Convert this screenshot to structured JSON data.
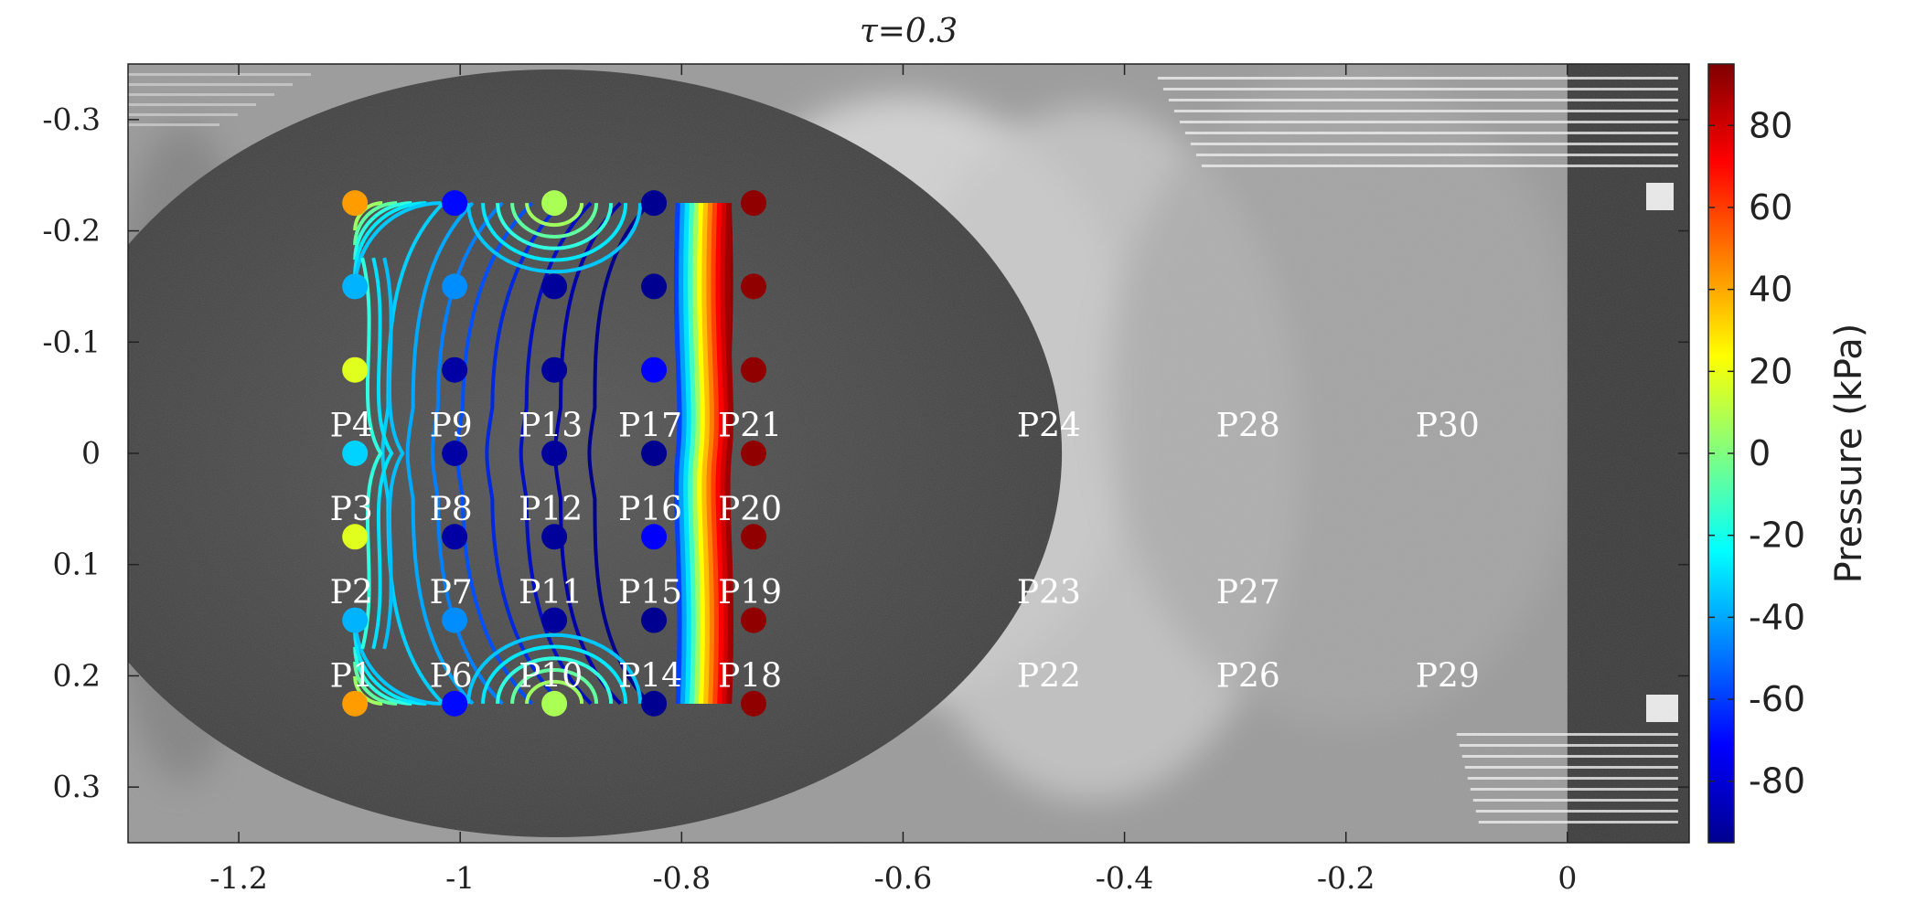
{
  "chart_data": {
    "type": "scatter",
    "title": "τ=0.3",
    "xlabel": "",
    "ylabel": "",
    "xlim": [
      -1.3,
      0.11
    ],
    "ylim": [
      0.35,
      -0.35
    ],
    "x_ticks": [
      -1.2,
      -1,
      -0.8,
      -0.6,
      -0.4,
      -0.2,
      0
    ],
    "x_tick_labels": [
      "-1.2",
      "-1",
      "-0.8",
      "-0.6",
      "-0.4",
      "-0.2",
      "0"
    ],
    "y_ticks": [
      -0.3,
      -0.2,
      -0.1,
      0,
      0.1,
      0.2,
      0.3
    ],
    "y_tick_labels": [
      "-0.3",
      "-0.2",
      "-0.1",
      "0",
      "0.1",
      "0.2",
      "0.3"
    ],
    "y_axis_reversed": true,
    "background": "grayscale high-speed camera image",
    "grid": false,
    "colorbar": {
      "label": "Pressure (kPa)",
      "range": [
        -95,
        95
      ],
      "ticks": [
        80,
        60,
        40,
        20,
        0,
        -20,
        -40,
        -60,
        -80
      ],
      "tick_labels": [
        "80",
        "60",
        "40",
        "20",
        "0",
        "-20",
        "-40",
        "-60",
        "-80"
      ],
      "colormap": "jet",
      "position": "right"
    },
    "sensor_points": [
      {
        "x": -1.095,
        "y": -0.225,
        "pressure": 42
      },
      {
        "x": -1.095,
        "y": -0.15,
        "pressure": -38
      },
      {
        "x": -1.095,
        "y": -0.075,
        "pressure": 18
      },
      {
        "x": -1.095,
        "y": 0.0,
        "pressure": -32
      },
      {
        "x": -1.095,
        "y": 0.075,
        "pressure": 18
      },
      {
        "x": -1.095,
        "y": 0.15,
        "pressure": -38
      },
      {
        "x": -1.095,
        "y": 0.225,
        "pressure": 42
      },
      {
        "x": -1.005,
        "y": -0.225,
        "pressure": -70
      },
      {
        "x": -1.005,
        "y": -0.15,
        "pressure": -45
      },
      {
        "x": -1.005,
        "y": -0.075,
        "pressure": -88
      },
      {
        "x": -1.005,
        "y": 0.0,
        "pressure": -88
      },
      {
        "x": -1.005,
        "y": 0.075,
        "pressure": -88
      },
      {
        "x": -1.005,
        "y": 0.15,
        "pressure": -45
      },
      {
        "x": -1.005,
        "y": 0.225,
        "pressure": -70
      },
      {
        "x": -0.915,
        "y": -0.225,
        "pressure": 8
      },
      {
        "x": -0.915,
        "y": -0.15,
        "pressure": -90
      },
      {
        "x": -0.915,
        "y": -0.075,
        "pressure": -90
      },
      {
        "x": -0.915,
        "y": 0.0,
        "pressure": -90
      },
      {
        "x": -0.915,
        "y": 0.075,
        "pressure": -90
      },
      {
        "x": -0.915,
        "y": 0.15,
        "pressure": -90
      },
      {
        "x": -0.915,
        "y": 0.225,
        "pressure": 8
      },
      {
        "x": -0.825,
        "y": -0.225,
        "pressure": -92
      },
      {
        "x": -0.825,
        "y": -0.15,
        "pressure": -92
      },
      {
        "x": -0.825,
        "y": -0.075,
        "pressure": -72
      },
      {
        "x": -0.825,
        "y": 0.0,
        "pressure": -92
      },
      {
        "x": -0.825,
        "y": 0.075,
        "pressure": -72
      },
      {
        "x": -0.825,
        "y": 0.15,
        "pressure": -92
      },
      {
        "x": -0.825,
        "y": 0.225,
        "pressure": -92
      },
      {
        "x": -0.735,
        "y": -0.225,
        "pressure": 92
      },
      {
        "x": -0.735,
        "y": -0.15,
        "pressure": 92
      },
      {
        "x": -0.735,
        "y": -0.075,
        "pressure": 92
      },
      {
        "x": -0.735,
        "y": 0.0,
        "pressure": 92
      },
      {
        "x": -0.735,
        "y": 0.075,
        "pressure": 92
      },
      {
        "x": -0.735,
        "y": 0.15,
        "pressure": 92
      },
      {
        "x": -0.735,
        "y": 0.225,
        "pressure": 92
      }
    ],
    "probe_labels": [
      {
        "text": "P1",
        "x": -1.095,
        "y": 0.2
      },
      {
        "text": "P2",
        "x": -1.095,
        "y": 0.125
      },
      {
        "text": "P3",
        "x": -1.095,
        "y": 0.05
      },
      {
        "text": "P4",
        "x": -1.095,
        "y": -0.025
      },
      {
        "text": "P6",
        "x": -1.005,
        "y": 0.2
      },
      {
        "text": "P7",
        "x": -1.005,
        "y": 0.125
      },
      {
        "text": "P8",
        "x": -1.005,
        "y": 0.05
      },
      {
        "text": "P9",
        "x": -1.005,
        "y": -0.025
      },
      {
        "text": "P10",
        "x": -0.915,
        "y": 0.2
      },
      {
        "text": "P11",
        "x": -0.915,
        "y": 0.125
      },
      {
        "text": "P12",
        "x": -0.915,
        "y": 0.05
      },
      {
        "text": "P13",
        "x": -0.915,
        "y": -0.025
      },
      {
        "text": "P14",
        "x": -0.825,
        "y": 0.2
      },
      {
        "text": "P15",
        "x": -0.825,
        "y": 0.125
      },
      {
        "text": "P16",
        "x": -0.825,
        "y": 0.05
      },
      {
        "text": "P17",
        "x": -0.825,
        "y": -0.025
      },
      {
        "text": "P18",
        "x": -0.735,
        "y": 0.2
      },
      {
        "text": "P19",
        "x": -0.735,
        "y": 0.125
      },
      {
        "text": "P20",
        "x": -0.735,
        "y": 0.05
      },
      {
        "text": "P21",
        "x": -0.735,
        "y": -0.025
      },
      {
        "text": "P22",
        "x": -0.465,
        "y": 0.2
      },
      {
        "text": "P23",
        "x": -0.465,
        "y": 0.125
      },
      {
        "text": "P24",
        "x": -0.465,
        "y": -0.025
      },
      {
        "text": "P26",
        "x": -0.285,
        "y": 0.2
      },
      {
        "text": "P27",
        "x": -0.285,
        "y": 0.125
      },
      {
        "text": "P28",
        "x": -0.285,
        "y": -0.025
      },
      {
        "text": "P29",
        "x": -0.105,
        "y": 0.2
      },
      {
        "text": "P30",
        "x": -0.105,
        "y": -0.025
      }
    ],
    "field_region": {
      "x": [
        -1.095,
        -0.735
      ],
      "y": [
        -0.225,
        0.225
      ]
    }
  }
}
